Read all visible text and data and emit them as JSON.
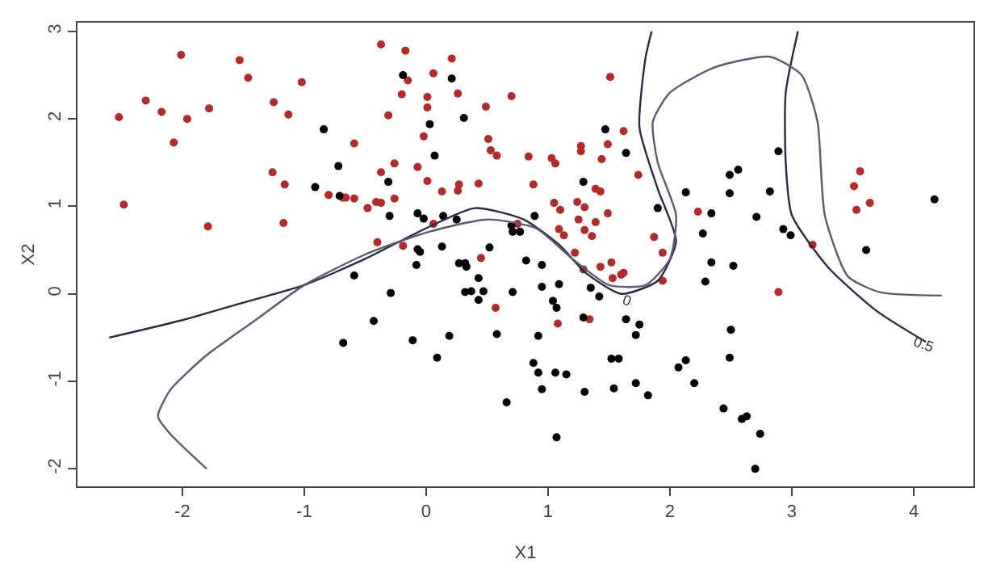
{
  "chart_data": {
    "type": "scatter",
    "xlabel": "X1",
    "ylabel": "X2",
    "xlim": [
      -2.86,
      4.49
    ],
    "ylim": [
      -2.2,
      3.1
    ],
    "xticks": [
      -2,
      -1,
      0,
      1,
      2,
      3,
      4
    ],
    "yticks": [
      -2,
      -1,
      0,
      1,
      2,
      3
    ],
    "marker": "circle",
    "annotations": [
      {
        "text": "0",
        "x": 1.65,
        "y": -0.07
      },
      {
        "text": "0.5",
        "x": 4.08,
        "y": -0.57
      }
    ],
    "series": [
      {
        "color": "#b22a2a",
        "x": [
          -2.52,
          -2.48,
          -2.3,
          -2.17,
          -2.01,
          -1.96,
          -2.07,
          -1.78,
          -1.79,
          -1.53,
          -1.46,
          -1.25,
          -1.13,
          -1.02,
          -1.26,
          -1.16,
          -1.17,
          -0.8,
          -0.68,
          -0.66,
          -0.59,
          -0.59,
          -0.37,
          -0.17,
          0.21,
          0.06,
          -0.15,
          0.26,
          -0.2,
          0.01,
          0.01,
          0.7,
          0.49,
          -0.31,
          -0.02,
          0.51,
          0.53,
          0.58,
          -0.26,
          -0.07,
          -0.37,
          0.01,
          0.27,
          0.26,
          0.13,
          0.43,
          0.84,
          0.88,
          1.03,
          1.06,
          1.27,
          1.27,
          1.49,
          1.44,
          1.51,
          1.62,
          1.74,
          1.39,
          1.43,
          1.49,
          1.05,
          1.1,
          1.24,
          1.3,
          1.25,
          1.39,
          1.09,
          1.13,
          1.3,
          1.36,
          1.22,
          1.43,
          1.52,
          1.87,
          1.94,
          -0.48,
          -0.41,
          -0.37,
          -0.26,
          0.06,
          -0.4,
          -0.19,
          0.45,
          0.75,
          3.56,
          3.51,
          3.53,
          3.64,
          2.23,
          3.17,
          0.57,
          1.08,
          1.34,
          1.29,
          1.6,
          1.62,
          1.53,
          1.94,
          2.89
        ],
        "values": [
          2.02,
          1.02,
          2.21,
          2.08,
          2.73,
          2.0,
          1.73,
          2.12,
          0.77,
          2.67,
          2.47,
          2.19,
          2.05,
          2.42,
          1.39,
          1.25,
          0.81,
          1.13,
          1.1,
          1.1,
          1.72,
          1.09,
          2.85,
          2.78,
          2.69,
          2.52,
          2.44,
          2.29,
          2.28,
          2.25,
          2.13,
          2.26,
          2.14,
          2.04,
          1.8,
          1.77,
          1.64,
          1.58,
          1.49,
          1.45,
          1.39,
          1.29,
          1.25,
          1.18,
          1.17,
          1.26,
          1.57,
          1.25,
          1.55,
          1.49,
          1.69,
          1.63,
          1.71,
          1.54,
          2.48,
          1.86,
          1.36,
          1.2,
          1.17,
          0.92,
          1.04,
          0.96,
          1.05,
          0.99,
          0.85,
          0.82,
          0.74,
          0.67,
          0.73,
          0.66,
          0.47,
          0.31,
          0.36,
          0.65,
          0.47,
          0.98,
          1.05,
          1.04,
          1.09,
          0.8,
          0.59,
          0.55,
          0.41,
          0.8,
          1.4,
          1.23,
          0.96,
          1.04,
          0.94,
          0.56,
          -0.16,
          -0.34,
          -0.29,
          0.28,
          0.22,
          0.24,
          0.18,
          0.15,
          0.02
        ]
      },
      {
        "color": "#000000",
        "x": [
          -0.84,
          -0.72,
          -0.91,
          -0.71,
          -0.19,
          0.21,
          0.03,
          0.31,
          0.07,
          -0.31,
          -0.3,
          -0.07,
          -0.02,
          0.14,
          0.25,
          0.7,
          0.71,
          0.77,
          0.89,
          1.29,
          1.47,
          1.64,
          1.9,
          -0.07,
          -0.05,
          0.13,
          0.52,
          0.27,
          0.32,
          0.33,
          -0.08,
          0.82,
          0.95,
          2.89,
          2.49,
          2.56,
          2.49,
          2.13,
          2.34,
          2.82,
          2.71,
          2.93,
          2.99,
          2.27,
          3.61,
          4.17,
          2.34,
          2.52,
          -0.59,
          -0.29,
          -0.43,
          -0.68,
          -0.11,
          0.09,
          0.19,
          0.43,
          0.32,
          0.37,
          0.47,
          0.43,
          0.71,
          0.58,
          0.66,
          0.95,
          1.09,
          1.04,
          1.07,
          0.92,
          0.88,
          0.92,
          1.06,
          1.15,
          0.95,
          1.07,
          1.29,
          1.35,
          1.42,
          1.64,
          1.75,
          1.72,
          1.52,
          1.58,
          1.54,
          1.72,
          1.82,
          1.3,
          2.29,
          2.5,
          2.49,
          2.07,
          2.13,
          2.2,
          2.44,
          2.59,
          2.63,
          2.74,
          2.7
        ],
        "values": [
          1.88,
          1.46,
          1.22,
          1.12,
          2.5,
          2.46,
          1.94,
          2.01,
          1.58,
          1.28,
          0.89,
          0.92,
          0.86,
          0.89,
          0.85,
          0.78,
          0.71,
          0.71,
          0.89,
          1.28,
          1.88,
          1.61,
          0.98,
          0.51,
          0.48,
          0.54,
          0.53,
          0.35,
          0.35,
          0.31,
          0.33,
          0.38,
          0.33,
          1.63,
          1.36,
          1.42,
          1.15,
          1.16,
          0.92,
          1.17,
          0.88,
          0.74,
          0.67,
          0.69,
          0.5,
          1.08,
          0.36,
          0.32,
          0.21,
          0.01,
          -0.31,
          -0.56,
          -0.53,
          -0.73,
          -0.48,
          0.18,
          0.02,
          0.03,
          0.03,
          -0.07,
          0.02,
          -0.46,
          -1.24,
          0.08,
          0.11,
          -0.08,
          -0.16,
          -0.48,
          -0.79,
          -0.9,
          -0.9,
          -0.92,
          -1.09,
          -1.64,
          -0.27,
          0.07,
          -0.03,
          -0.29,
          -0.35,
          -0.47,
          -0.74,
          -0.74,
          -1.08,
          -1.02,
          -1.16,
          -1.12,
          0.14,
          -0.41,
          -0.73,
          -0.84,
          -0.76,
          -1.02,
          -1.31,
          -1.43,
          -1.4,
          -1.6,
          -2.0
        ]
      },
      {
        "type": "line",
        "color": "#2b2b45",
        "line_style": "solid",
        "marker": "none",
        "x": [
          -2.6,
          -2.0,
          -1.5,
          -1.0,
          -0.5,
          0.0,
          0.4,
          0.8,
          1.1,
          1.3,
          1.6,
          1.9,
          2.05,
          1.9,
          1.75,
          1.8,
          1.85,
          null,
          3.05,
          2.95,
          2.95,
          3.0,
          3.3,
          3.7,
          4.1
        ],
        "values": [
          -0.5,
          -0.3,
          -0.1,
          0.1,
          0.4,
          0.75,
          0.98,
          0.85,
          0.55,
          0.25,
          0.0,
          0.15,
          0.6,
          1.2,
          1.9,
          2.7,
          3.0,
          null,
          3.0,
          2.3,
          1.5,
          0.9,
          0.3,
          -0.2,
          -0.55
        ]
      },
      {
        "type": "line",
        "color": "#5a5a70",
        "line_style": "solid",
        "marker": "none",
        "x": [
          -1.8,
          -2.1,
          -2.2,
          -2.1,
          -1.8,
          -1.4,
          -1.0,
          -0.5,
          0.0,
          0.5,
          0.9,
          1.2,
          1.5,
          1.8,
          2.0,
          2.05,
          1.9,
          1.86,
          2.0,
          2.37,
          2.82,
          3.08,
          3.21,
          3.27,
          3.46,
          3.72,
          4.23
        ],
        "values": [
          -2.0,
          -1.6,
          -1.4,
          -1.1,
          -0.7,
          -0.3,
          0.1,
          0.45,
          0.7,
          0.85,
          0.75,
          0.4,
          0.1,
          0.1,
          0.4,
          0.9,
          1.5,
          1.97,
          2.3,
          2.59,
          2.71,
          2.5,
          1.97,
          0.9,
          0.2,
          0.02,
          -0.02
        ]
      }
    ]
  }
}
